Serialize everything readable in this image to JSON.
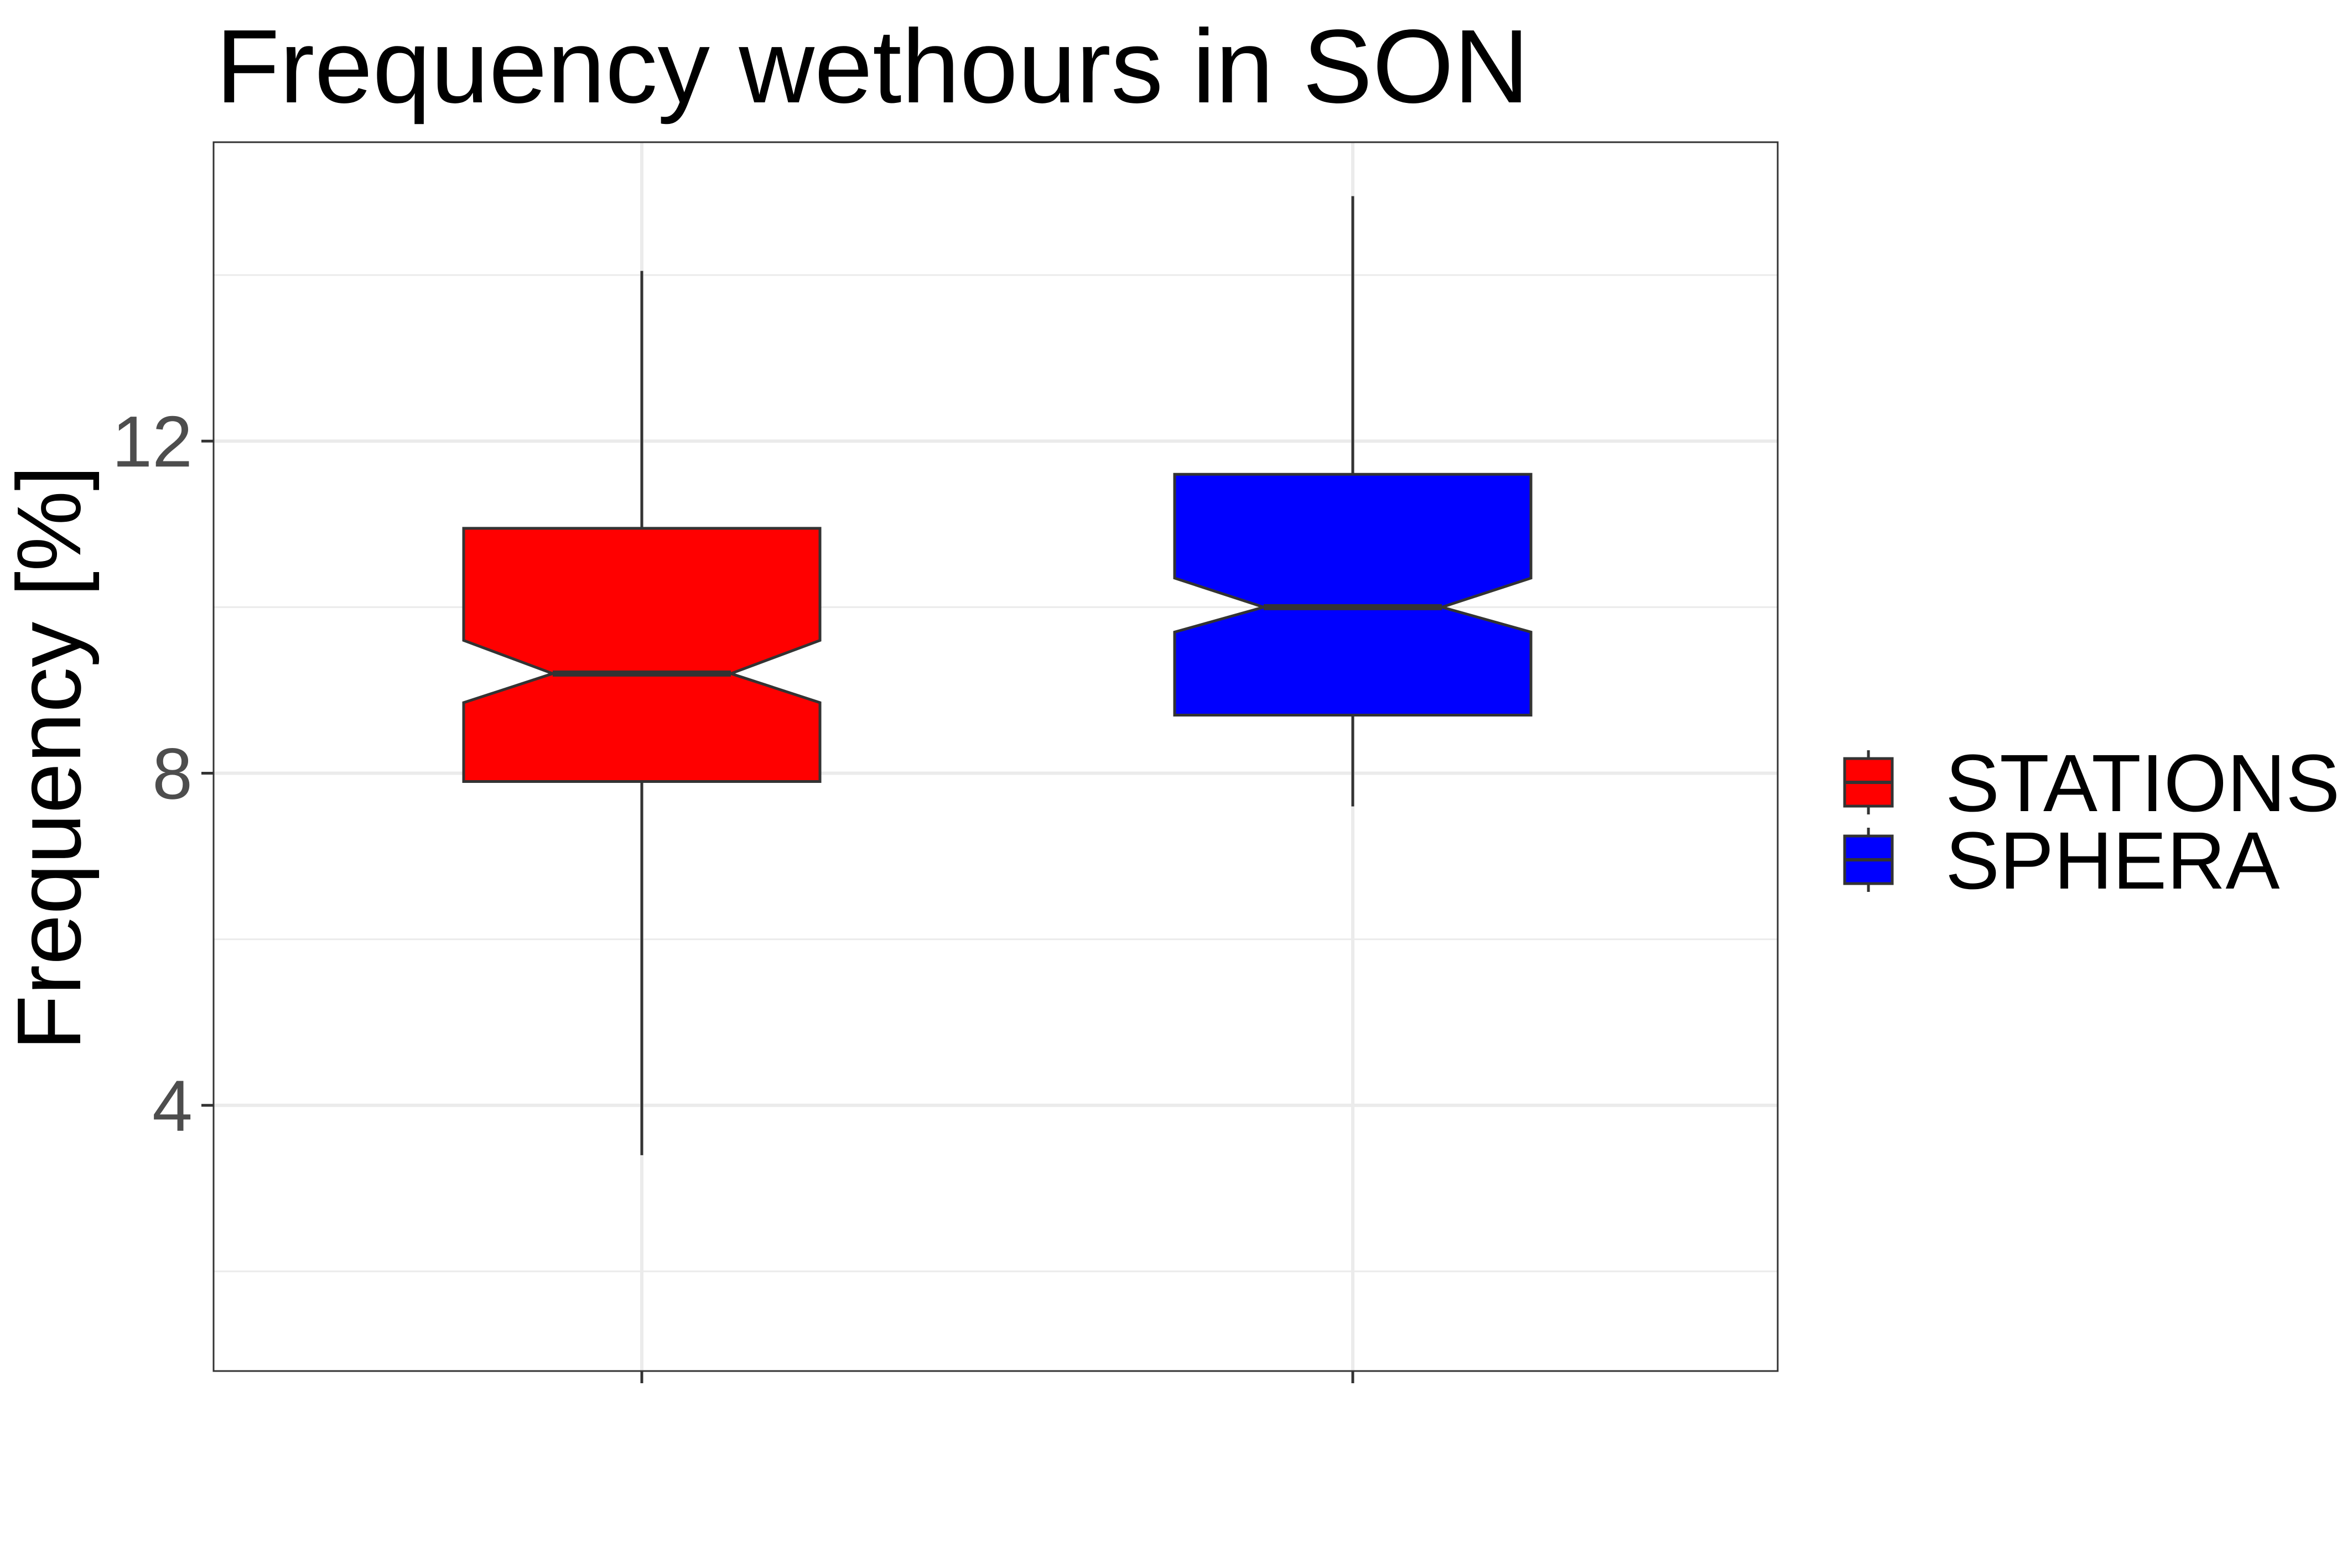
{
  "chart_data": {
    "type": "boxplot",
    "title": "Frequency wethours in SON",
    "xlabel": "",
    "ylabel": "Frequency [%]",
    "ylim": [
      0.8,
      15.6
    ],
    "y_ticks": [
      4,
      8,
      12
    ],
    "y_minor_gridlines": [
      2,
      6,
      10,
      14
    ],
    "x_ticks_labeled": false,
    "notched": true,
    "grid": true,
    "legend_position": "right",
    "series": [
      {
        "name": "STATIONS",
        "color": "#ff0000",
        "min": 3.4,
        "q1": 7.9,
        "median": 9.2,
        "q3": 10.95,
        "max": 14.05,
        "notch_low": 8.85,
        "notch_high": 9.6
      },
      {
        "name": "SPHERA",
        "color": "#0000ff",
        "min": 7.6,
        "q1": 8.7,
        "median": 10.0,
        "q3": 11.6,
        "max": 14.95,
        "notch_low": 9.7,
        "notch_high": 10.35
      }
    ]
  }
}
